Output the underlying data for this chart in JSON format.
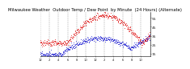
{
  "title_line1": "Milwaukee Weather  Outdoor Temp / Dew Point  by Minute  (24 Hours) (Alternate)",
  "bg_color": "#ffffff",
  "plot_bg_color": "#ffffff",
  "grid_color": "#888888",
  "temp_color": "#dd0000",
  "dew_color": "#0000cc",
  "ylim": [
    12,
    62
  ],
  "yticks": [
    15,
    25,
    35,
    45,
    55
  ],
  "minutes_in_day": 1440,
  "title_fontsize": 3.8,
  "tick_fontsize": 3.2,
  "dot_size": 0.25
}
